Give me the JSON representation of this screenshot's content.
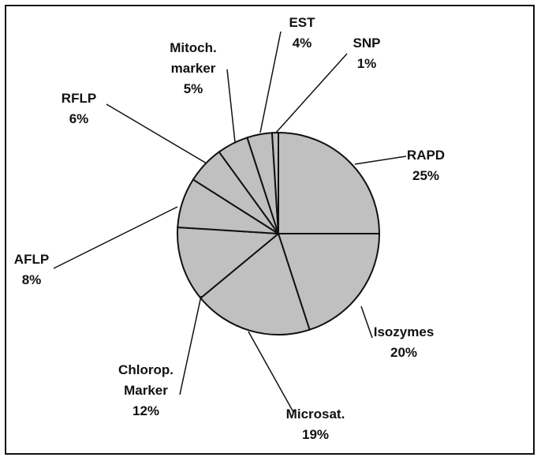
{
  "chart_data": {
    "type": "pie",
    "categories": [
      "RAPD",
      "Isozymes",
      "Microsat.",
      "Chlorop. Marker",
      "AFLP",
      "RFLP",
      "Mitoch. marker",
      "EST",
      "SNP"
    ],
    "values": [
      25,
      20,
      19,
      12,
      8,
      6,
      5,
      4,
      1
    ],
    "value_labels": [
      "25%",
      "20%",
      "19%",
      "12%",
      "8%",
      "6%",
      "5%",
      "4%",
      "1%"
    ],
    "color": "#c0c0c0"
  }
}
